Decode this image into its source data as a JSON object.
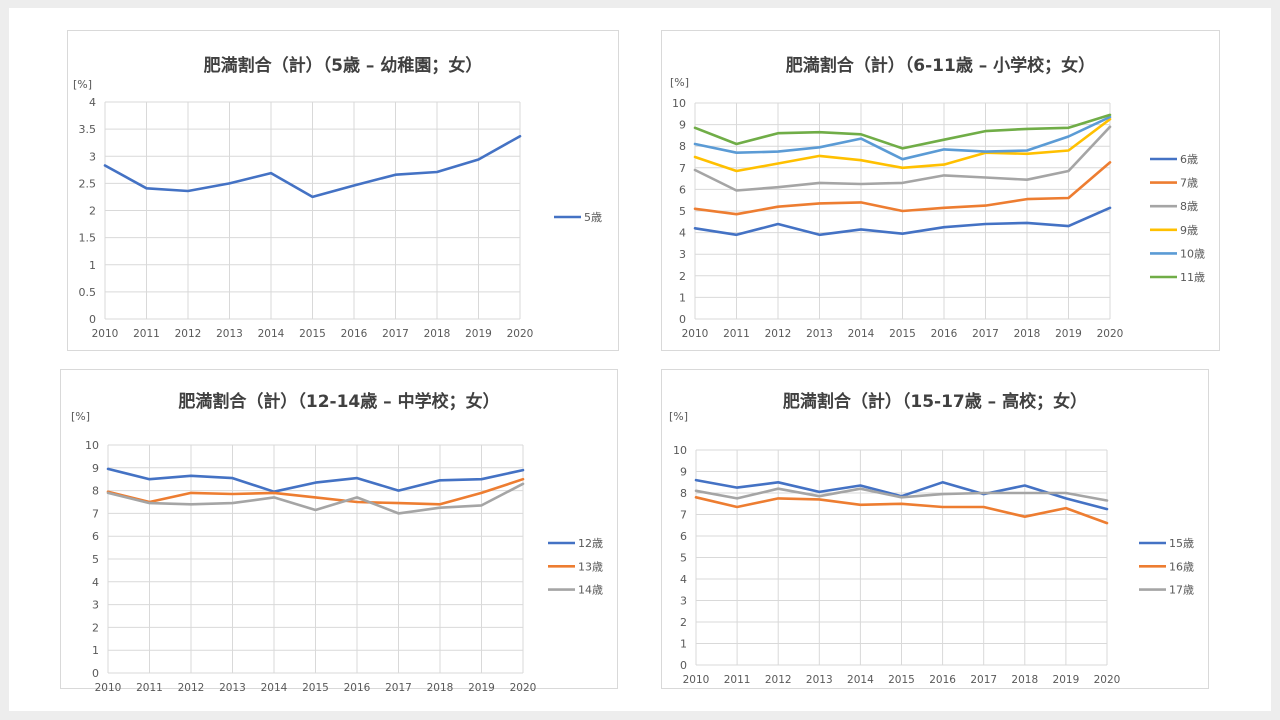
{
  "colors": {
    "blue": "#4472c4",
    "orange": "#ed7d31",
    "gray": "#a5a5a5",
    "yellow": "#ffc000",
    "lightblue": "#5b9bd5",
    "green": "#70ad47",
    "grid": "#d9d9d9"
  },
  "chart_data": [
    {
      "type": "line",
      "title": "肥満割合（計）（5歳 – 幼稚園；女）",
      "unit_label": "[%]",
      "x": [
        "2010",
        "2011",
        "2012",
        "2013",
        "2014",
        "2015",
        "2016",
        "2017",
        "2018",
        "2019",
        "2020"
      ],
      "ylim": [
        0,
        4
      ],
      "yticks": [
        "0",
        "0.5",
        "1",
        "1.5",
        "2",
        "2.5",
        "3",
        "3.5",
        "4"
      ],
      "grid": true,
      "legend": "right",
      "series": [
        {
          "name": "5歳",
          "color": "#4472c4",
          "values": [
            2.83,
            2.41,
            2.36,
            2.5,
            2.69,
            2.25,
            2.46,
            2.66,
            2.71,
            2.94,
            3.37
          ]
        }
      ]
    },
    {
      "type": "line",
      "title": "肥満割合（計）（6-11歳 – 小学校；女）",
      "unit_label": "[%]",
      "x": [
        "2010",
        "2011",
        "2012",
        "2013",
        "2014",
        "2015",
        "2016",
        "2017",
        "2018",
        "2019",
        "2020"
      ],
      "ylim": [
        0,
        10
      ],
      "yticks": [
        "0",
        "1",
        "2",
        "3",
        "4",
        "5",
        "6",
        "7",
        "8",
        "9",
        "10"
      ],
      "grid": true,
      "legend": "right",
      "series": [
        {
          "name": "6歳",
          "color": "#4472c4",
          "values": [
            4.2,
            3.9,
            4.4,
            3.9,
            4.15,
            3.95,
            4.25,
            4.4,
            4.45,
            4.3,
            5.15
          ]
        },
        {
          "name": "7歳",
          "color": "#ed7d31",
          "values": [
            5.1,
            4.85,
            5.2,
            5.35,
            5.4,
            5.0,
            5.15,
            5.25,
            5.55,
            5.6,
            7.25
          ]
        },
        {
          "name": "8歳",
          "color": "#a5a5a5",
          "values": [
            6.9,
            5.95,
            6.1,
            6.3,
            6.25,
            6.3,
            6.65,
            6.55,
            6.45,
            6.85,
            8.9
          ]
        },
        {
          "name": "9歳",
          "color": "#ffc000",
          "values": [
            7.5,
            6.85,
            7.2,
            7.55,
            7.35,
            7.0,
            7.15,
            7.7,
            7.65,
            7.8,
            9.25
          ]
        },
        {
          "name": "10歳",
          "color": "#5b9bd5",
          "values": [
            8.1,
            7.7,
            7.75,
            7.95,
            8.35,
            7.4,
            7.85,
            7.75,
            7.8,
            8.45,
            9.35
          ]
        },
        {
          "name": "11歳",
          "color": "#70ad47",
          "values": [
            8.85,
            8.1,
            8.6,
            8.65,
            8.55,
            7.9,
            8.3,
            8.7,
            8.8,
            8.85,
            9.45
          ]
        }
      ]
    },
    {
      "type": "line",
      "title": "肥満割合（計）（12-14歳 – 中学校；女）",
      "unit_label": "[%]",
      "x": [
        "2010",
        "2011",
        "2012",
        "2013",
        "2014",
        "2015",
        "2016",
        "2017",
        "2018",
        "2019",
        "2020"
      ],
      "ylim": [
        0,
        10
      ],
      "yticks": [
        "0",
        "1",
        "2",
        "3",
        "4",
        "5",
        "6",
        "7",
        "8",
        "9",
        "10"
      ],
      "grid": true,
      "legend": "right",
      "series": [
        {
          "name": "12歳",
          "color": "#4472c4",
          "values": [
            8.95,
            8.5,
            8.65,
            8.55,
            7.95,
            8.35,
            8.55,
            8.0,
            8.45,
            8.5,
            8.9
          ]
        },
        {
          "name": "13歳",
          "color": "#ed7d31",
          "values": [
            7.95,
            7.5,
            7.9,
            7.85,
            7.9,
            7.7,
            7.5,
            7.45,
            7.4,
            7.9,
            8.5
          ]
        },
        {
          "name": "14歳",
          "color": "#a5a5a5",
          "values": [
            7.9,
            7.45,
            7.4,
            7.45,
            7.7,
            7.15,
            7.7,
            7.0,
            7.25,
            7.35,
            8.3
          ]
        }
      ]
    },
    {
      "type": "line",
      "title": "肥満割合（計）（15-17歳 – 高校；女）",
      "unit_label": "[%]",
      "x": [
        "2010",
        "2011",
        "2012",
        "2013",
        "2014",
        "2015",
        "2016",
        "2017",
        "2018",
        "2019",
        "2020"
      ],
      "ylim": [
        0,
        10
      ],
      "yticks": [
        "0",
        "1",
        "2",
        "3",
        "4",
        "5",
        "6",
        "7",
        "8",
        "9",
        "10"
      ],
      "grid": true,
      "legend": "right",
      "series": [
        {
          "name": "15歳",
          "color": "#4472c4",
          "values": [
            8.6,
            8.25,
            8.5,
            8.05,
            8.35,
            7.85,
            8.5,
            7.95,
            8.35,
            7.75,
            7.25
          ]
        },
        {
          "name": "16歳",
          "color": "#ed7d31",
          "values": [
            7.8,
            7.35,
            7.75,
            7.7,
            7.45,
            7.5,
            7.35,
            7.35,
            6.9,
            7.3,
            6.6
          ]
        },
        {
          "name": "17歳",
          "color": "#a5a5a5",
          "values": [
            8.1,
            7.75,
            8.2,
            7.85,
            8.2,
            7.8,
            7.95,
            8.0,
            8.0,
            8.0,
            7.65
          ]
        }
      ]
    }
  ]
}
